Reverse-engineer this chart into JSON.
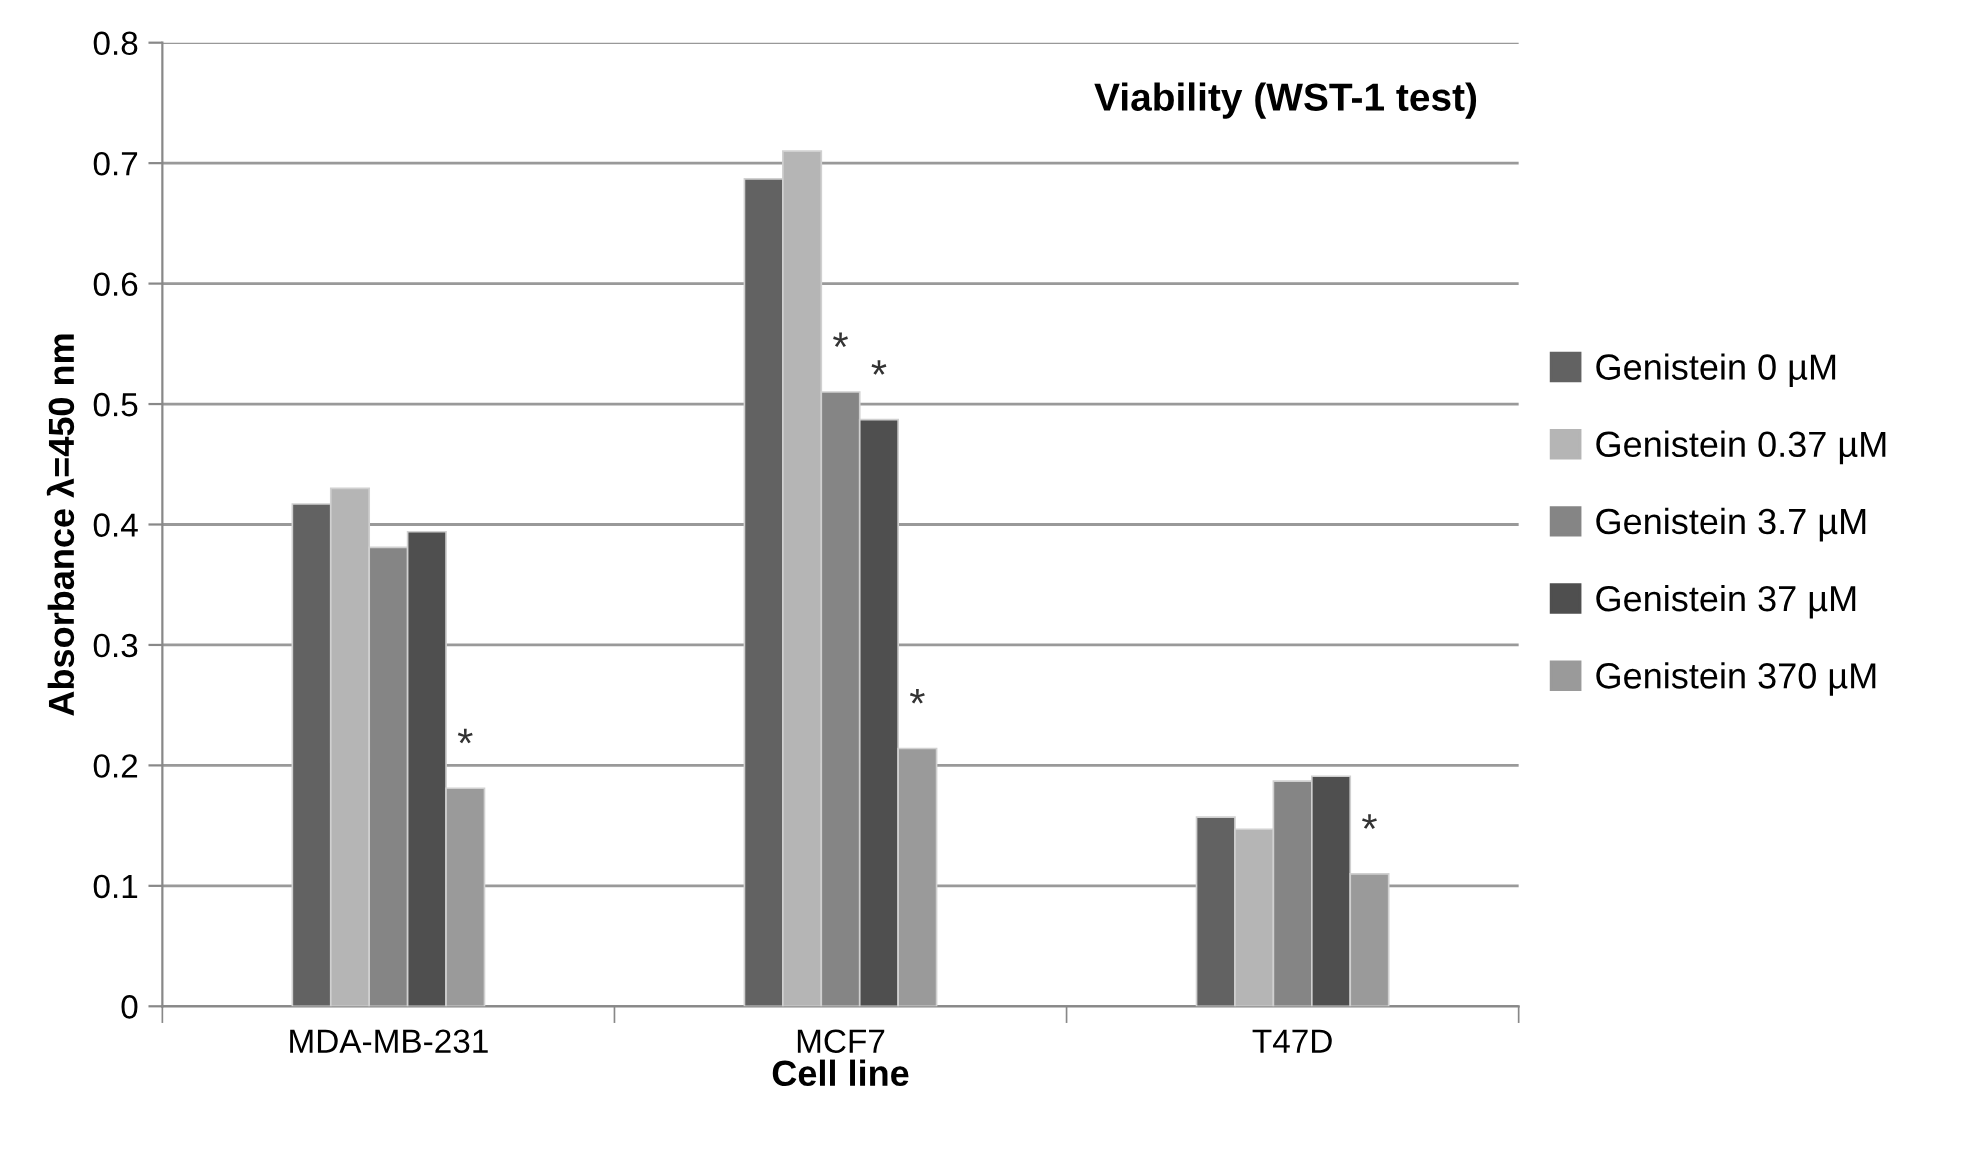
{
  "chart_data": {
    "type": "bar",
    "title": "Viability (WST-1 test)",
    "xlabel": "Cell line",
    "ylabel": "Absorbance λ=450 nm",
    "categories": [
      "MDA-MB-231",
      "MCF7",
      "T47D"
    ],
    "series": [
      {
        "name": "Genistein 0 µM",
        "color": "#626262",
        "values": [
          0.417,
          0.687,
          0.157
        ]
      },
      {
        "name": "Genistein 0.37 µM",
        "color": "#b5b5b5",
        "values": [
          0.43,
          0.71,
          0.147
        ]
      },
      {
        "name": "Genistein 3.7 µM",
        "color": "#858585",
        "values": [
          0.381,
          0.51,
          0.187
        ],
        "value_labels": [
          null,
          "*",
          null
        ]
      },
      {
        "name": "Genistein 37 µM",
        "color": "#4f4f4f",
        "values": [
          0.394,
          0.487,
          0.191
        ],
        "value_labels": [
          null,
          "*",
          null
        ]
      },
      {
        "name": "Genistein 370 µM",
        "color": "#9a9a9a",
        "values": [
          0.181,
          0.214,
          0.11
        ],
        "value_labels": [
          "*",
          "*",
          "*"
        ]
      }
    ],
    "ylim": [
      0,
      0.8
    ],
    "yticks": [
      0,
      0.1,
      0.2,
      0.3,
      0.4,
      0.5,
      0.6,
      0.7,
      0.8
    ],
    "grid": "y",
    "legend": "right"
  }
}
